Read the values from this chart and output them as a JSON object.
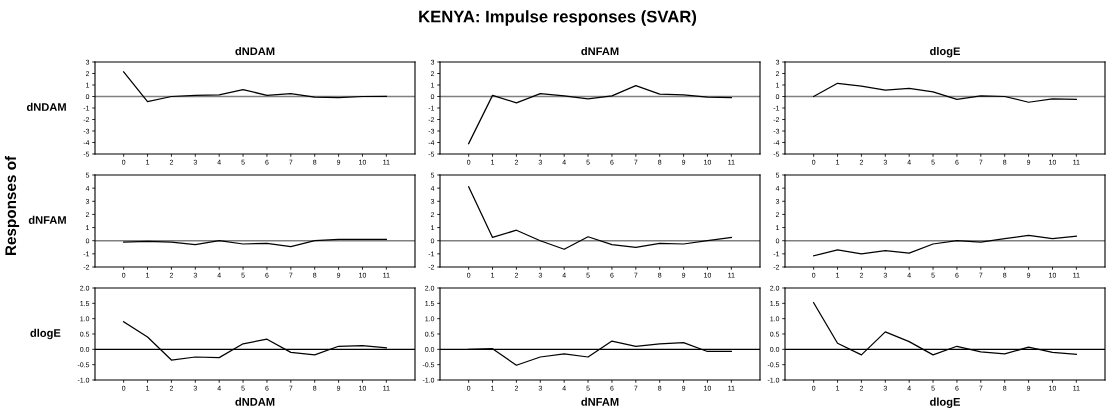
{
  "chart_data": [
    {
      "type": "line",
      "title": "dNDAM",
      "ylabel": "dNDAM",
      "annotations": [
        "KENYA: Impulse responses (SVAR)",
        "Responses of"
      ],
      "x": [
        0,
        1,
        2,
        3,
        4,
        5,
        6,
        7,
        8,
        9,
        10,
        11
      ],
      "xlim": [
        -1.2,
        12.2
      ],
      "xticks": [
        0,
        1,
        2,
        3,
        4,
        5,
        6,
        7,
        8,
        9,
        10,
        11
      ],
      "ylim": [
        -5,
        3
      ],
      "yticks": [
        -5,
        -4,
        -3,
        -2,
        -1,
        0,
        1,
        2,
        3
      ],
      "ref_lines": [
        {
          "axis": "y",
          "value": 0,
          "color": "#808080"
        }
      ],
      "series": [
        {
          "color": "#000000",
          "values": [
            2.15,
            -0.45,
            0.0,
            0.1,
            0.15,
            0.6,
            0.1,
            0.25,
            -0.05,
            -0.1,
            0.0,
            0.02
          ]
        }
      ]
    },
    {
      "type": "line",
      "title": "dNFAM",
      "x": [
        0,
        1,
        2,
        3,
        4,
        5,
        6,
        7,
        8,
        9,
        10,
        11
      ],
      "xlim": [
        -1.2,
        12.2
      ],
      "xticks": [
        0,
        1,
        2,
        3,
        4,
        5,
        6,
        7,
        8,
        9,
        10,
        11
      ],
      "ylim": [
        -5,
        3
      ],
      "yticks": [
        -5,
        -4,
        -3,
        -2,
        -1,
        0,
        1,
        2,
        3
      ],
      "ref_lines": [
        {
          "axis": "y",
          "value": 0,
          "color": "#808080"
        }
      ],
      "series": [
        {
          "color": "#000000",
          "values": [
            -4.1,
            0.1,
            -0.55,
            0.25,
            0.05,
            -0.2,
            0.05,
            0.95,
            0.2,
            0.15,
            -0.05,
            -0.1
          ]
        }
      ]
    },
    {
      "type": "line",
      "title": "dlogE",
      "x": [
        0,
        1,
        2,
        3,
        4,
        5,
        6,
        7,
        8,
        9,
        10,
        11
      ],
      "xlim": [
        -1.2,
        12.2
      ],
      "xticks": [
        0,
        1,
        2,
        3,
        4,
        5,
        6,
        7,
        8,
        9,
        10,
        11
      ],
      "ylim": [
        -5,
        3
      ],
      "yticks": [
        -5,
        -4,
        -3,
        -2,
        -1,
        0,
        1,
        2,
        3
      ],
      "ref_lines": [
        {
          "axis": "y",
          "value": 0,
          "color": "#808080"
        }
      ],
      "series": [
        {
          "color": "#000000",
          "values": [
            0.0,
            1.15,
            0.9,
            0.55,
            0.7,
            0.4,
            -0.25,
            0.05,
            0.0,
            -0.5,
            -0.2,
            -0.25
          ]
        }
      ]
    },
    {
      "type": "line",
      "ylabel": "dNFAM",
      "x": [
        0,
        1,
        2,
        3,
        4,
        5,
        6,
        7,
        8,
        9,
        10,
        11
      ],
      "xlim": [
        -1.2,
        12.2
      ],
      "xticks": [
        0,
        1,
        2,
        3,
        4,
        5,
        6,
        7,
        8,
        9,
        10,
        11
      ],
      "ylim": [
        -2,
        5
      ],
      "yticks": [
        -2,
        -1,
        0,
        1,
        2,
        3,
        4,
        5
      ],
      "ref_lines": [
        {
          "axis": "y",
          "value": 0,
          "color": "#808080"
        }
      ],
      "series": [
        {
          "color": "#000000",
          "values": [
            -0.1,
            -0.05,
            -0.1,
            -0.3,
            0.0,
            -0.25,
            -0.2,
            -0.45,
            0.0,
            0.1,
            0.1,
            0.1
          ]
        }
      ]
    },
    {
      "type": "line",
      "x": [
        0,
        1,
        2,
        3,
        4,
        5,
        6,
        7,
        8,
        9,
        10,
        11
      ],
      "xlim": [
        -1.2,
        12.2
      ],
      "xticks": [
        0,
        1,
        2,
        3,
        4,
        5,
        6,
        7,
        8,
        9,
        10,
        11
      ],
      "ylim": [
        -2,
        5
      ],
      "yticks": [
        -2,
        -1,
        0,
        1,
        2,
        3,
        4,
        5
      ],
      "ref_lines": [
        {
          "axis": "y",
          "value": 0,
          "color": "#808080"
        }
      ],
      "series": [
        {
          "color": "#000000",
          "values": [
            4.1,
            0.25,
            0.8,
            0.0,
            -0.65,
            0.3,
            -0.3,
            -0.5,
            -0.2,
            -0.25,
            0.0,
            0.25
          ]
        }
      ]
    },
    {
      "type": "line",
      "x": [
        0,
        1,
        2,
        3,
        4,
        5,
        6,
        7,
        8,
        9,
        10,
        11
      ],
      "xlim": [
        -1.2,
        12.2
      ],
      "xticks": [
        0,
        1,
        2,
        3,
        4,
        5,
        6,
        7,
        8,
        9,
        10,
        11
      ],
      "ylim": [
        -2,
        5
      ],
      "yticks": [
        -2,
        -1,
        0,
        1,
        2,
        3,
        4,
        5
      ],
      "ref_lines": [
        {
          "axis": "y",
          "value": 0,
          "color": "#808080"
        }
      ],
      "series": [
        {
          "color": "#000000",
          "values": [
            -1.15,
            -0.7,
            -1.0,
            -0.75,
            -0.95,
            -0.25,
            0.0,
            -0.1,
            0.15,
            0.4,
            0.15,
            0.35
          ]
        }
      ]
    },
    {
      "type": "line",
      "ylabel": "dlogE",
      "xlabel": "dNDAM",
      "x": [
        0,
        1,
        2,
        3,
        4,
        5,
        6,
        7,
        8,
        9,
        10,
        11
      ],
      "xlim": [
        -1.2,
        12.2
      ],
      "xticks": [
        0,
        1,
        2,
        3,
        4,
        5,
        6,
        7,
        8,
        9,
        10,
        11
      ],
      "ylim": [
        -1,
        2
      ],
      "yticks": [
        {
          "value": -1,
          "label": "-1.0"
        },
        {
          "value": -0.5,
          "label": "-0.5"
        },
        {
          "value": 0,
          "label": "0.0"
        },
        {
          "value": 0.5,
          "label": "0.5"
        },
        {
          "value": 1,
          "label": "1.0"
        },
        {
          "value": 1.5,
          "label": "1.5"
        },
        {
          "value": 2,
          "label": "2.0"
        }
      ],
      "ref_lines": [
        {
          "axis": "y",
          "value": 0,
          "color": "#000000"
        }
      ],
      "series": [
        {
          "color": "#000000",
          "values": [
            0.9,
            0.4,
            -0.35,
            -0.25,
            -0.27,
            0.18,
            0.33,
            -0.1,
            -0.18,
            0.1,
            0.12,
            0.05
          ]
        }
      ]
    },
    {
      "type": "line",
      "xlabel": "dNFAM",
      "x": [
        0,
        1,
        2,
        3,
        4,
        5,
        6,
        7,
        8,
        9,
        10,
        11
      ],
      "xlim": [
        -1.2,
        12.2
      ],
      "xticks": [
        0,
        1,
        2,
        3,
        4,
        5,
        6,
        7,
        8,
        9,
        10,
        11
      ],
      "ylim": [
        -1,
        2
      ],
      "yticks": [
        {
          "value": -1,
          "label": "-1.0"
        },
        {
          "value": -0.5,
          "label": "-0.5"
        },
        {
          "value": 0,
          "label": "0.0"
        },
        {
          "value": 0.5,
          "label": "0.5"
        },
        {
          "value": 1,
          "label": "1.0"
        },
        {
          "value": 1.5,
          "label": "1.5"
        },
        {
          "value": 2,
          "label": "2.0"
        }
      ],
      "ref_lines": [
        {
          "axis": "y",
          "value": 0,
          "color": "#000000"
        }
      ],
      "series": [
        {
          "color": "#000000",
          "values": [
            0.0,
            0.02,
            -0.52,
            -0.25,
            -0.15,
            -0.25,
            0.27,
            0.1,
            0.18,
            0.22,
            -0.07,
            -0.07
          ]
        }
      ]
    },
    {
      "type": "line",
      "xlabel": "dlogE",
      "x": [
        0,
        1,
        2,
        3,
        4,
        5,
        6,
        7,
        8,
        9,
        10,
        11
      ],
      "xlim": [
        -1.2,
        12.2
      ],
      "xticks": [
        0,
        1,
        2,
        3,
        4,
        5,
        6,
        7,
        8,
        9,
        10,
        11
      ],
      "ylim": [
        -1,
        2
      ],
      "yticks": [
        {
          "value": -1,
          "label": "-1.0"
        },
        {
          "value": -0.5,
          "label": "-0.5"
        },
        {
          "value": 0,
          "label": "0.0"
        },
        {
          "value": 0.5,
          "label": "0.5"
        },
        {
          "value": 1,
          "label": "1.0"
        },
        {
          "value": 1.5,
          "label": "1.5"
        },
        {
          "value": 2,
          "label": "2.0"
        }
      ],
      "ref_lines": [
        {
          "axis": "y",
          "value": 0,
          "color": "#000000"
        }
      ],
      "series": [
        {
          "color": "#000000",
          "values": [
            1.52,
            0.2,
            -0.18,
            0.57,
            0.25,
            -0.18,
            0.1,
            -0.08,
            -0.15,
            0.07,
            -0.1,
            -0.16
          ]
        }
      ]
    }
  ]
}
